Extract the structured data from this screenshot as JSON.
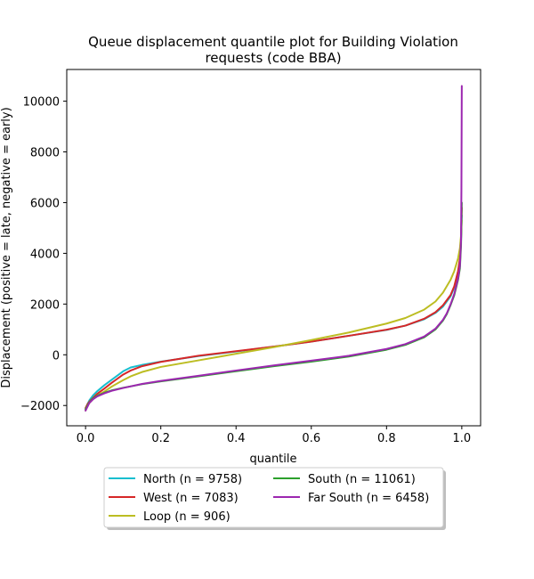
{
  "chart_data": {
    "type": "line",
    "title_line1": "Queue displacement quantile plot for Building Violation",
    "title_line2": "requests (code BBA)",
    "xlabel": "quantile",
    "ylabel": "Displacement (positive = late, negative = early)",
    "xlim": [
      -0.05,
      1.05
    ],
    "ylim": [
      -2800,
      11250
    ],
    "xticks": [
      0.0,
      0.2,
      0.4,
      0.6,
      0.8,
      1.0
    ],
    "xtick_labels": [
      "0.0",
      "0.2",
      "0.4",
      "0.6",
      "0.8",
      "1.0"
    ],
    "yticks": [
      -2000,
      0,
      2000,
      4000,
      6000,
      8000,
      10000
    ],
    "ytick_labels": [
      "−2000",
      "0",
      "2000",
      "4000",
      "6000",
      "8000",
      "10000"
    ],
    "grid": false,
    "legend_placement": "below",
    "series": [
      {
        "name": "North (n = 9758)",
        "color": "#17becf",
        "x": [
          0.0,
          0.005,
          0.01,
          0.02,
          0.03,
          0.05,
          0.07,
          0.1,
          0.12,
          0.15,
          0.2,
          0.3,
          0.4,
          0.5,
          0.6,
          0.7,
          0.8,
          0.85,
          0.9,
          0.93,
          0.95,
          0.97,
          0.98,
          0.99,
          0.995,
          0.998,
          1.0
        ],
        "y": [
          -2150,
          -1950,
          -1800,
          -1600,
          -1450,
          -1200,
          -980,
          -650,
          -500,
          -400,
          -270,
          -50,
          130,
          320,
          520,
          750,
          980,
          1150,
          1400,
          1650,
          1900,
          2300,
          2650,
          3200,
          3700,
          4500,
          5500
        ]
      },
      {
        "name": "West (n = 7083)",
        "color": "#d62728",
        "x": [
          0.0,
          0.005,
          0.01,
          0.02,
          0.03,
          0.05,
          0.07,
          0.1,
          0.12,
          0.15,
          0.2,
          0.3,
          0.4,
          0.5,
          0.6,
          0.7,
          0.8,
          0.85,
          0.9,
          0.93,
          0.95,
          0.97,
          0.98,
          0.99,
          0.995,
          0.998,
          1.0
        ],
        "y": [
          -2100,
          -1950,
          -1850,
          -1700,
          -1550,
          -1330,
          -1100,
          -780,
          -620,
          -450,
          -280,
          -40,
          140,
          320,
          520,
          750,
          990,
          1150,
          1420,
          1680,
          1950,
          2350,
          2700,
          3300,
          3800,
          4600,
          5800
        ]
      },
      {
        "name": "Loop (n = 906)",
        "color": "#bcbd22",
        "x": [
          0.0,
          0.005,
          0.01,
          0.02,
          0.03,
          0.05,
          0.07,
          0.1,
          0.12,
          0.15,
          0.2,
          0.3,
          0.4,
          0.5,
          0.6,
          0.7,
          0.8,
          0.85,
          0.9,
          0.93,
          0.95,
          0.97,
          0.98,
          0.99,
          0.995,
          0.998,
          1.0
        ],
        "y": [
          -2200,
          -2000,
          -1900,
          -1750,
          -1620,
          -1450,
          -1250,
          -1000,
          -850,
          -680,
          -480,
          -220,
          40,
          300,
          580,
          880,
          1230,
          1450,
          1780,
          2100,
          2450,
          2950,
          3300,
          3800,
          4200,
          4700,
          5300
        ]
      },
      {
        "name": "South (n = 11061)",
        "color": "#2ca02c",
        "x": [
          0.0,
          0.005,
          0.01,
          0.02,
          0.03,
          0.05,
          0.07,
          0.1,
          0.15,
          0.2,
          0.3,
          0.4,
          0.5,
          0.6,
          0.7,
          0.8,
          0.85,
          0.9,
          0.93,
          0.95,
          0.96,
          0.97,
          0.98,
          0.99,
          0.995,
          0.998,
          1.0
        ],
        "y": [
          -2150,
          -2000,
          -1880,
          -1720,
          -1620,
          -1500,
          -1400,
          -1300,
          -1160,
          -1050,
          -850,
          -650,
          -450,
          -270,
          -70,
          200,
          390,
          690,
          1000,
          1350,
          1600,
          1950,
          2350,
          2950,
          3400,
          4300,
          6000
        ]
      },
      {
        "name": "Far South (n = 6458)",
        "color": "#9c27b0",
        "x": [
          0.0,
          0.005,
          0.01,
          0.02,
          0.03,
          0.05,
          0.07,
          0.1,
          0.15,
          0.2,
          0.3,
          0.4,
          0.5,
          0.6,
          0.7,
          0.8,
          0.85,
          0.9,
          0.93,
          0.95,
          0.96,
          0.97,
          0.98,
          0.99,
          0.995,
          0.998,
          0.999,
          1.0
        ],
        "y": [
          -2200,
          -2050,
          -1900,
          -1750,
          -1650,
          -1520,
          -1420,
          -1310,
          -1150,
          -1030,
          -830,
          -620,
          -420,
          -230,
          -40,
          230,
          420,
          720,
          1030,
          1380,
          1630,
          1980,
          2400,
          3000,
          3500,
          4500,
          6500,
          10600
        ]
      }
    ]
  }
}
